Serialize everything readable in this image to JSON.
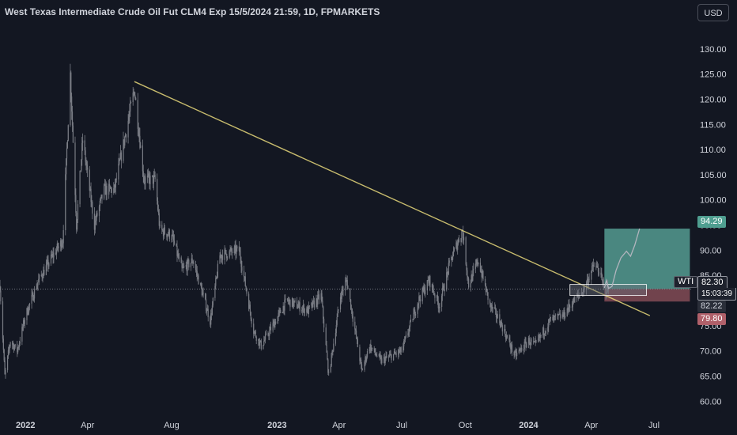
{
  "header": {
    "title": "West Texas Intermediate Crude Oil Fut CLM4 Exp 15/5/2024 21:59, 1D, FPMARKETS",
    "currency_button": "USD"
  },
  "colors": {
    "background": "#131722",
    "candles": "#7a7d85",
    "trendline": "#e8d87a",
    "target_zone": "#5fb3a5",
    "stop_zone": "#b0606a",
    "text": "#d1d4dc"
  },
  "price_tags": {
    "target": "94.29",
    "symbol": "WTI",
    "last_price": "82.30",
    "countdown": "15:03:39",
    "entry": "82.22",
    "stop": "79.80"
  },
  "chart_data": {
    "type": "candlestick",
    "title": "West Texas Intermediate Crude Oil Fut CLM4 Exp 15/5/2024 21:59, 1D, FPMARKETS",
    "y_axis": {
      "ticks": [
        60,
        65,
        70,
        75,
        80,
        85,
        90,
        95,
        100,
        105,
        110,
        115,
        120,
        125,
        130
      ],
      "tick_labels": [
        "60.00",
        "65.00",
        "70.00",
        "75.00",
        "80.00",
        "85.00",
        "90.00",
        "95.00",
        "100.00",
        "105.00",
        "110.00",
        "115.00",
        "120.00",
        "125.00",
        "130.00"
      ],
      "range": [
        58,
        135
      ],
      "side": "right"
    },
    "x_axis": {
      "range": [
        "2021-11-25",
        "2024-08-25"
      ],
      "ticks": [
        {
          "label": "2022",
          "date": "2022-01-01"
        },
        {
          "label": "Apr",
          "date": "2022-04-01"
        },
        {
          "label": "Aug",
          "date": "2022-08-01"
        },
        {
          "label": "2023",
          "date": "2023-01-01"
        },
        {
          "label": "Apr",
          "date": "2023-04-01"
        },
        {
          "label": "Jul",
          "date": "2023-07-01"
        },
        {
          "label": "Oct",
          "date": "2023-10-01"
        },
        {
          "label": "2024",
          "date": "2024-01-01"
        },
        {
          "label": "Apr",
          "date": "2024-04-01"
        },
        {
          "label": "Jul",
          "date": "2024-07-01"
        }
      ]
    },
    "price_path": [
      [
        "2021-11-25",
        83
      ],
      [
        "2021-12-02",
        65
      ],
      [
        "2021-12-10",
        72
      ],
      [
        "2021-12-20",
        70
      ],
      [
        "2022-01-01",
        77
      ],
      [
        "2022-01-20",
        84
      ],
      [
        "2022-02-10",
        89
      ],
      [
        "2022-02-24",
        92
      ],
      [
        "2022-03-07",
        125
      ],
      [
        "2022-03-16",
        95
      ],
      [
        "2022-03-25",
        112
      ],
      [
        "2022-04-11",
        95
      ],
      [
        "2022-04-25",
        102
      ],
      [
        "2022-05-10",
        102
      ],
      [
        "2022-06-08",
        122
      ],
      [
        "2022-06-22",
        104
      ],
      [
        "2022-07-08",
        104
      ],
      [
        "2022-07-15",
        94
      ],
      [
        "2022-08-01",
        93
      ],
      [
        "2022-08-16",
        86
      ],
      [
        "2022-09-01",
        88
      ],
      [
        "2022-09-26",
        76
      ],
      [
        "2022-10-10",
        89
      ],
      [
        "2022-11-07",
        90
      ],
      [
        "2022-11-28",
        74
      ],
      [
        "2022-12-09",
        71
      ],
      [
        "2023-01-03",
        77
      ],
      [
        "2023-01-15",
        80
      ],
      [
        "2023-02-15",
        78
      ],
      [
        "2023-03-06",
        81
      ],
      [
        "2023-03-17",
        65
      ],
      [
        "2023-04-03",
        81
      ],
      [
        "2023-04-12",
        84
      ],
      [
        "2023-05-04",
        66
      ],
      [
        "2023-05-15",
        71
      ],
      [
        "2023-06-01",
        68
      ],
      [
        "2023-07-01",
        70
      ],
      [
        "2023-07-25",
        80
      ],
      [
        "2023-08-10",
        84
      ],
      [
        "2023-08-24",
        79
      ],
      [
        "2023-09-10",
        88
      ],
      [
        "2023-09-27",
        94
      ],
      [
        "2023-10-06",
        83
      ],
      [
        "2023-10-20",
        88
      ],
      [
        "2023-11-06",
        79
      ],
      [
        "2023-11-20",
        76
      ],
      [
        "2023-12-12",
        69
      ],
      [
        "2024-01-01",
        72
      ],
      [
        "2024-01-10",
        71
      ],
      [
        "2024-02-01",
        76
      ],
      [
        "2024-02-20",
        77
      ],
      [
        "2024-03-01",
        79
      ],
      [
        "2024-03-20",
        82
      ],
      [
        "2024-04-05",
        87
      ],
      [
        "2024-04-12",
        86
      ],
      [
        "2024-04-20",
        82
      ],
      [
        "2024-04-26",
        82.3
      ]
    ],
    "annotations": [
      {
        "kind": "trendline",
        "from": [
          "2022-06-08",
          123.5
        ],
        "to": [
          "2024-06-25",
          77
        ]
      },
      {
        "kind": "horizontal_dotted",
        "price": 82.3
      },
      {
        "kind": "zone_box",
        "x": [
          "2024-03-01",
          "2024-06-20"
        ],
        "y": [
          81.0,
          83.2
        ]
      },
      {
        "kind": "target_zone",
        "x": [
          "2024-04-20",
          "2024-08-22"
        ],
        "y": [
          82.3,
          94.29
        ]
      },
      {
        "kind": "stop_zone",
        "x": [
          "2024-04-20",
          "2024-08-22"
        ],
        "y": [
          79.8,
          82.3
        ]
      },
      {
        "kind": "projection_path",
        "points": [
          [
            "2024-04-20",
            82.5
          ],
          [
            "2024-04-23",
            84
          ],
          [
            "2024-04-26",
            82.4
          ],
          [
            "2024-05-01",
            82.8
          ],
          [
            "2024-05-07",
            86
          ],
          [
            "2024-05-14",
            88.5
          ],
          [
            "2024-05-22",
            89.8
          ],
          [
            "2024-05-28",
            88.8
          ],
          [
            "2024-06-03",
            91
          ],
          [
            "2024-06-10",
            94.3
          ]
        ]
      }
    ]
  }
}
